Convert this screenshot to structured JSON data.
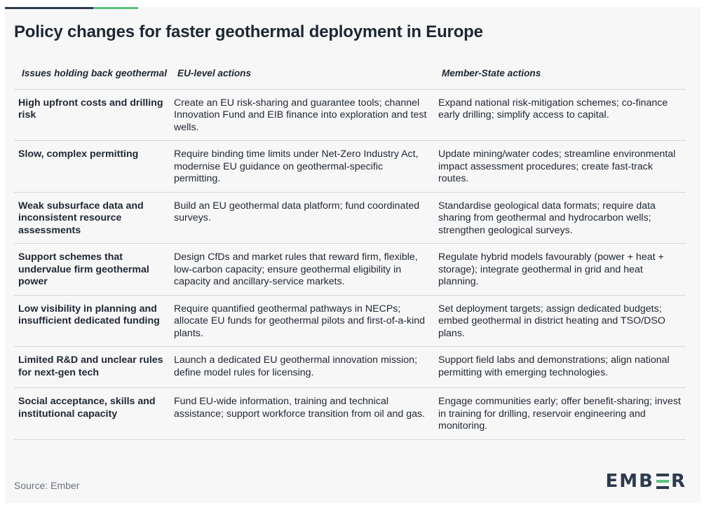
{
  "title": "Policy changes for faster geothermal deployment in Europe",
  "columns": {
    "issues": "Issues holding back geothermal",
    "eu": "EU-level actions",
    "member": "Member-State actions"
  },
  "rows": [
    {
      "issue": "High upfront costs and drilling risk",
      "eu": "Create an EU risk-sharing and guarantee tools; channel Innovation Fund and EIB finance into exploration and test wells.",
      "member": "Expand national risk-mitigation schemes; co-finance early drilling; simplify access to capital."
    },
    {
      "issue": "Slow, complex permitting",
      "eu": "Require binding time limits under Net-Zero Industry Act, modernise EU guidance on geothermal-specific permitting.",
      "member": "Update mining/water codes; streamline environmental impact assessment procedures; create fast-track routes."
    },
    {
      "issue": "Weak subsurface data and inconsistent resource assessments",
      "eu": "Build an EU geothermal data platform; fund coordinated surveys.",
      "member": "Standardise geological data formats; require data sharing from geothermal and hydrocarbon wells; strengthen geological surveys."
    },
    {
      "issue": "Support schemes that undervalue firm geothermal power",
      "eu": "Design CfDs and market rules that reward firm, flexible, low-carbon capacity; ensure geothermal eligibility in capacity and ancillary-service markets.",
      "member": "Regulate hybrid models favourably (power + heat + storage); integrate geothermal in grid and heat planning."
    },
    {
      "issue": "Low visibility in planning and insufficient dedicated funding",
      "eu": "Require quantified geothermal pathways in NECPs; allocate EU funds for geothermal pilots and first-of-a-kind plants.",
      "member": "Set deployment targets; assign dedicated budgets; embed geothermal in district heating and TSO/DSO plans."
    },
    {
      "issue": "Limited R&D and unclear rules for next-gen tech",
      "eu": "Launch a dedicated EU geothermal innovation mission; define model rules for licensing.",
      "member": "Support field labs and demonstrations; align national permitting with emerging technologies."
    },
    {
      "issue": "Social acceptance, skills and institutional capacity",
      "eu": "Fund EU-wide information, training and technical assistance; support workforce transition from oil and gas.",
      "member": "Engage communities early; offer benefit-sharing; invest in training for drilling, reservoir engineering and monitoring."
    }
  ],
  "footer": {
    "source": "Source: Ember",
    "logo_left": "EMB",
    "logo_right": "R"
  },
  "colors": {
    "accent_dark": "#2c3a4d",
    "accent_green": "#5bc37d",
    "background": "#f7f7f7"
  }
}
